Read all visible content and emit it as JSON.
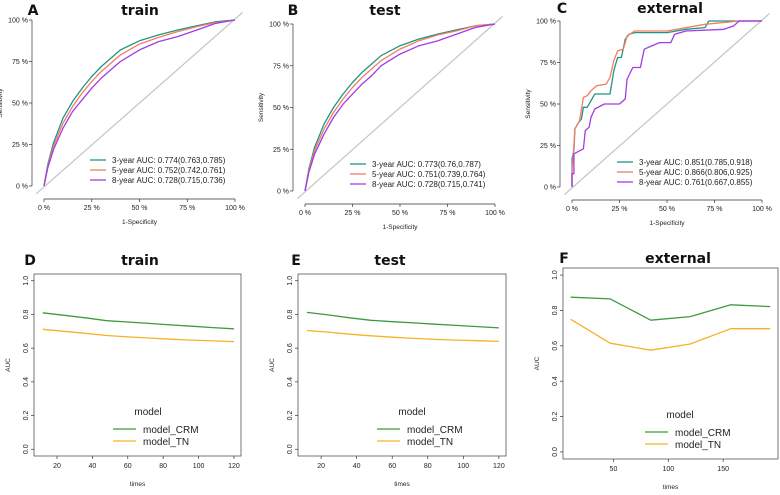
{
  "colors": {
    "y3": "#1f9584",
    "y5": "#f27d62",
    "y8": "#a23be8",
    "crm": "#3f9a3f",
    "tn": "#f6b224",
    "diag": "#c8c8c8"
  },
  "chart_data": [
    {
      "panel": "A",
      "title": "train",
      "type": "line",
      "xlabel": "1-Specificity",
      "ylabel": "Sensitivity",
      "ticks": [
        "0 %",
        "25 %",
        "50 %",
        "75 %",
        "100 %"
      ],
      "xlim": [
        0,
        1
      ],
      "ylim": [
        0,
        1
      ],
      "series": [
        {
          "name": "3-year AUC: 0.774(0.763,0.785)",
          "color": "y3",
          "points": [
            [
              0,
              0
            ],
            [
              0.02,
              0.13
            ],
            [
              0.05,
              0.26
            ],
            [
              0.1,
              0.41
            ],
            [
              0.15,
              0.51
            ],
            [
              0.2,
              0.59
            ],
            [
              0.25,
              0.66
            ],
            [
              0.3,
              0.72
            ],
            [
              0.35,
              0.77
            ],
            [
              0.4,
              0.82
            ],
            [
              0.5,
              0.875
            ],
            [
              0.6,
              0.91
            ],
            [
              0.7,
              0.94
            ],
            [
              0.8,
              0.965
            ],
            [
              0.9,
              0.99
            ],
            [
              1,
              1
            ]
          ]
        },
        {
          "name": "5-year AUC: 0.752(0.742,0.761)",
          "color": "y5",
          "points": [
            [
              0,
              0
            ],
            [
              0.02,
              0.12
            ],
            [
              0.05,
              0.24
            ],
            [
              0.1,
              0.38
            ],
            [
              0.15,
              0.48
            ],
            [
              0.2,
              0.56
            ],
            [
              0.25,
              0.63
            ],
            [
              0.3,
              0.69
            ],
            [
              0.35,
              0.74
            ],
            [
              0.4,
              0.79
            ],
            [
              0.5,
              0.855
            ],
            [
              0.6,
              0.895
            ],
            [
              0.7,
              0.93
            ],
            [
              0.8,
              0.96
            ],
            [
              0.9,
              0.985
            ],
            [
              1,
              1
            ]
          ]
        },
        {
          "name": "8-year AUC: 0.728(0.715,0.736)",
          "color": "y8",
          "points": [
            [
              0,
              0
            ],
            [
              0.02,
              0.11
            ],
            [
              0.05,
              0.22
            ],
            [
              0.1,
              0.35
            ],
            [
              0.15,
              0.45
            ],
            [
              0.2,
              0.52
            ],
            [
              0.25,
              0.59
            ],
            [
              0.3,
              0.65
            ],
            [
              0.35,
              0.7
            ],
            [
              0.4,
              0.75
            ],
            [
              0.5,
              0.82
            ],
            [
              0.6,
              0.87
            ],
            [
              0.7,
              0.9
            ],
            [
              0.8,
              0.94
            ],
            [
              0.9,
              0.98
            ],
            [
              1,
              1
            ]
          ]
        }
      ]
    },
    {
      "panel": "B",
      "title": "test",
      "type": "line",
      "xlabel": "1-Specificity",
      "ylabel": "Sensitivity",
      "ticks": [
        "0 %",
        "25 %",
        "50 %",
        "75 %",
        "100 %"
      ],
      "xlim": [
        0,
        1
      ],
      "ylim": [
        0,
        1
      ],
      "series": [
        {
          "name": "3-year AUC: 0.773(0.76,0.787)",
          "color": "y3",
          "points": [
            [
              0,
              0
            ],
            [
              0.02,
              0.13
            ],
            [
              0.05,
              0.26
            ],
            [
              0.1,
              0.4
            ],
            [
              0.15,
              0.5
            ],
            [
              0.2,
              0.58
            ],
            [
              0.25,
              0.65
            ],
            [
              0.3,
              0.71
            ],
            [
              0.35,
              0.76
            ],
            [
              0.4,
              0.81
            ],
            [
              0.5,
              0.87
            ],
            [
              0.6,
              0.91
            ],
            [
              0.7,
              0.94
            ],
            [
              0.8,
              0.965
            ],
            [
              0.9,
              0.99
            ],
            [
              1,
              1
            ]
          ]
        },
        {
          "name": "5-year AUC: 0.751(0.739,0.764)",
          "color": "y5",
          "points": [
            [
              0,
              0
            ],
            [
              0.02,
              0.12
            ],
            [
              0.05,
              0.24
            ],
            [
              0.1,
              0.37
            ],
            [
              0.15,
              0.47
            ],
            [
              0.2,
              0.55
            ],
            [
              0.25,
              0.62
            ],
            [
              0.3,
              0.68
            ],
            [
              0.35,
              0.73
            ],
            [
              0.4,
              0.78
            ],
            [
              0.5,
              0.85
            ],
            [
              0.6,
              0.9
            ],
            [
              0.7,
              0.935
            ],
            [
              0.8,
              0.96
            ],
            [
              0.9,
              0.99
            ],
            [
              1,
              1
            ]
          ]
        },
        {
          "name": "8-year AUC: 0.728(0.715,0.741)",
          "color": "y8",
          "points": [
            [
              0,
              0
            ],
            [
              0.02,
              0.11
            ],
            [
              0.05,
              0.22
            ],
            [
              0.1,
              0.34
            ],
            [
              0.15,
              0.44
            ],
            [
              0.2,
              0.52
            ],
            [
              0.25,
              0.58
            ],
            [
              0.3,
              0.64
            ],
            [
              0.35,
              0.69
            ],
            [
              0.4,
              0.75
            ],
            [
              0.5,
              0.82
            ],
            [
              0.6,
              0.87
            ],
            [
              0.7,
              0.9
            ],
            [
              0.8,
              0.94
            ],
            [
              0.9,
              0.98
            ],
            [
              1,
              1
            ]
          ]
        }
      ]
    },
    {
      "panel": "C",
      "title": "external",
      "type": "line",
      "xlabel": "1-Specificity",
      "ylabel": "Sensitivity",
      "ticks": [
        "0 %",
        "25 %",
        "50 %",
        "75 %",
        "100 %"
      ],
      "xlim": [
        0,
        1
      ],
      "ylim": [
        0,
        1
      ],
      "series": [
        {
          "name": "3-year AUC: 0.851(0.785,0.918)",
          "color": "y3",
          "points": [
            [
              0,
              0
            ],
            [
              0,
              0.17
            ],
            [
              0.01,
              0.22
            ],
            [
              0.015,
              0.35
            ],
            [
              0.03,
              0.38
            ],
            [
              0.05,
              0.41
            ],
            [
              0.06,
              0.48
            ],
            [
              0.08,
              0.48
            ],
            [
              0.1,
              0.52
            ],
            [
              0.12,
              0.56
            ],
            [
              0.2,
              0.56
            ],
            [
              0.22,
              0.7
            ],
            [
              0.24,
              0.78
            ],
            [
              0.26,
              0.78
            ],
            [
              0.28,
              0.89
            ],
            [
              0.3,
              0.92
            ],
            [
              0.33,
              0.93
            ],
            [
              0.5,
              0.93
            ],
            [
              0.6,
              0.95
            ],
            [
              0.7,
              0.96
            ],
            [
              0.72,
              1
            ],
            [
              1,
              1
            ]
          ]
        },
        {
          "name": "5-year AUC: 0.866(0.806,0.925)",
          "color": "y5",
          "points": [
            [
              0,
              0
            ],
            [
              0,
              0.1
            ],
            [
              0.01,
              0.25
            ],
            [
              0.015,
              0.35
            ],
            [
              0.04,
              0.4
            ],
            [
              0.06,
              0.54
            ],
            [
              0.08,
              0.55
            ],
            [
              0.1,
              0.58
            ],
            [
              0.13,
              0.61
            ],
            [
              0.18,
              0.62
            ],
            [
              0.2,
              0.66
            ],
            [
              0.22,
              0.76
            ],
            [
              0.24,
              0.82
            ],
            [
              0.27,
              0.83
            ],
            [
              0.29,
              0.91
            ],
            [
              0.33,
              0.94
            ],
            [
              0.5,
              0.94
            ],
            [
              0.7,
              0.98
            ],
            [
              0.88,
              1
            ],
            [
              1,
              1
            ]
          ]
        },
        {
          "name": "8-year AUC: 0.761(0.667,0.855)",
          "color": "y8",
          "points": [
            [
              0,
              0
            ],
            [
              0,
              0.08
            ],
            [
              0.01,
              0.08
            ],
            [
              0.01,
              0.2
            ],
            [
              0.06,
              0.23
            ],
            [
              0.07,
              0.34
            ],
            [
              0.09,
              0.36
            ],
            [
              0.1,
              0.42
            ],
            [
              0.12,
              0.47
            ],
            [
              0.17,
              0.5
            ],
            [
              0.25,
              0.5
            ],
            [
              0.28,
              0.53
            ],
            [
              0.29,
              0.65
            ],
            [
              0.32,
              0.72
            ],
            [
              0.36,
              0.72
            ],
            [
              0.38,
              0.83
            ],
            [
              0.42,
              0.85
            ],
            [
              0.46,
              0.87
            ],
            [
              0.52,
              0.87
            ],
            [
              0.54,
              0.92
            ],
            [
              0.6,
              0.94
            ],
            [
              0.8,
              0.95
            ],
            [
              0.85,
              0.97
            ],
            [
              0.88,
              1
            ],
            [
              1,
              1
            ]
          ]
        }
      ]
    },
    {
      "panel": "D",
      "title": "train",
      "type": "line",
      "xlabel": "times",
      "ylabel": "AUC",
      "legend_title": "model",
      "xlim": [
        7,
        124
      ],
      "ylim": [
        -0.04,
        1.04
      ],
      "xticks": [
        20,
        40,
        60,
        80,
        100,
        120
      ],
      "yticks": [
        0.0,
        0.2,
        0.4,
        0.6,
        0.8,
        1.0
      ],
      "series": [
        {
          "name": "model_CRM",
          "color": "crm",
          "points": [
            [
              12,
              0.81
            ],
            [
              24,
              0.795
            ],
            [
              36,
              0.78
            ],
            [
              48,
              0.763
            ],
            [
              60,
              0.755
            ],
            [
              72,
              0.747
            ],
            [
              84,
              0.738
            ],
            [
              96,
              0.73
            ],
            [
              108,
              0.722
            ],
            [
              120,
              0.715
            ]
          ]
        },
        {
          "name": "model_TN",
          "color": "tn",
          "points": [
            [
              12,
              0.712
            ],
            [
              24,
              0.7
            ],
            [
              36,
              0.688
            ],
            [
              48,
              0.675
            ],
            [
              60,
              0.667
            ],
            [
              72,
              0.66
            ],
            [
              84,
              0.653
            ],
            [
              96,
              0.648
            ],
            [
              108,
              0.643
            ],
            [
              120,
              0.639
            ]
          ]
        }
      ]
    },
    {
      "panel": "E",
      "title": "test",
      "type": "line",
      "xlabel": "times",
      "ylabel": "AUC",
      "legend_title": "model",
      "xlim": [
        7,
        124
      ],
      "ylim": [
        -0.04,
        1.04
      ],
      "xticks": [
        20,
        40,
        60,
        80,
        100,
        120
      ],
      "yticks": [
        0.0,
        0.2,
        0.4,
        0.6,
        0.8,
        1.0
      ],
      "series": [
        {
          "name": "model_CRM",
          "color": "crm",
          "points": [
            [
              12,
              0.812
            ],
            [
              24,
              0.797
            ],
            [
              36,
              0.78
            ],
            [
              48,
              0.765
            ],
            [
              60,
              0.757
            ],
            [
              72,
              0.75
            ],
            [
              84,
              0.742
            ],
            [
              96,
              0.735
            ],
            [
              108,
              0.728
            ],
            [
              120,
              0.72
            ]
          ]
        },
        {
          "name": "model_TN",
          "color": "tn",
          "points": [
            [
              12,
              0.705
            ],
            [
              24,
              0.695
            ],
            [
              36,
              0.683
            ],
            [
              48,
              0.673
            ],
            [
              60,
              0.665
            ],
            [
              72,
              0.658
            ],
            [
              84,
              0.652
            ],
            [
              96,
              0.648
            ],
            [
              108,
              0.644
            ],
            [
              120,
              0.64
            ]
          ]
        }
      ]
    },
    {
      "panel": "F",
      "title": "external",
      "type": "line",
      "xlabel": "times",
      "ylabel": "AUC",
      "legend_title": "model",
      "xlim": [
        4,
        200
      ],
      "ylim": [
        -0.04,
        1.04
      ],
      "xticks": [
        50,
        100,
        150
      ],
      "yticks": [
        0.0,
        0.2,
        0.4,
        0.6,
        0.8,
        1.0
      ],
      "series": [
        {
          "name": "model_CRM",
          "color": "crm",
          "points": [
            [
              11,
              0.875
            ],
            [
              47,
              0.865
            ],
            [
              84,
              0.745
            ],
            [
              120,
              0.765
            ],
            [
              157,
              0.832
            ],
            [
              193,
              0.822
            ]
          ]
        },
        {
          "name": "model_TN",
          "color": "tn",
          "points": [
            [
              11,
              0.75
            ],
            [
              47,
              0.615
            ],
            [
              84,
              0.575
            ],
            [
              120,
              0.61
            ],
            [
              157,
              0.697
            ],
            [
              193,
              0.697
            ]
          ]
        }
      ]
    }
  ]
}
